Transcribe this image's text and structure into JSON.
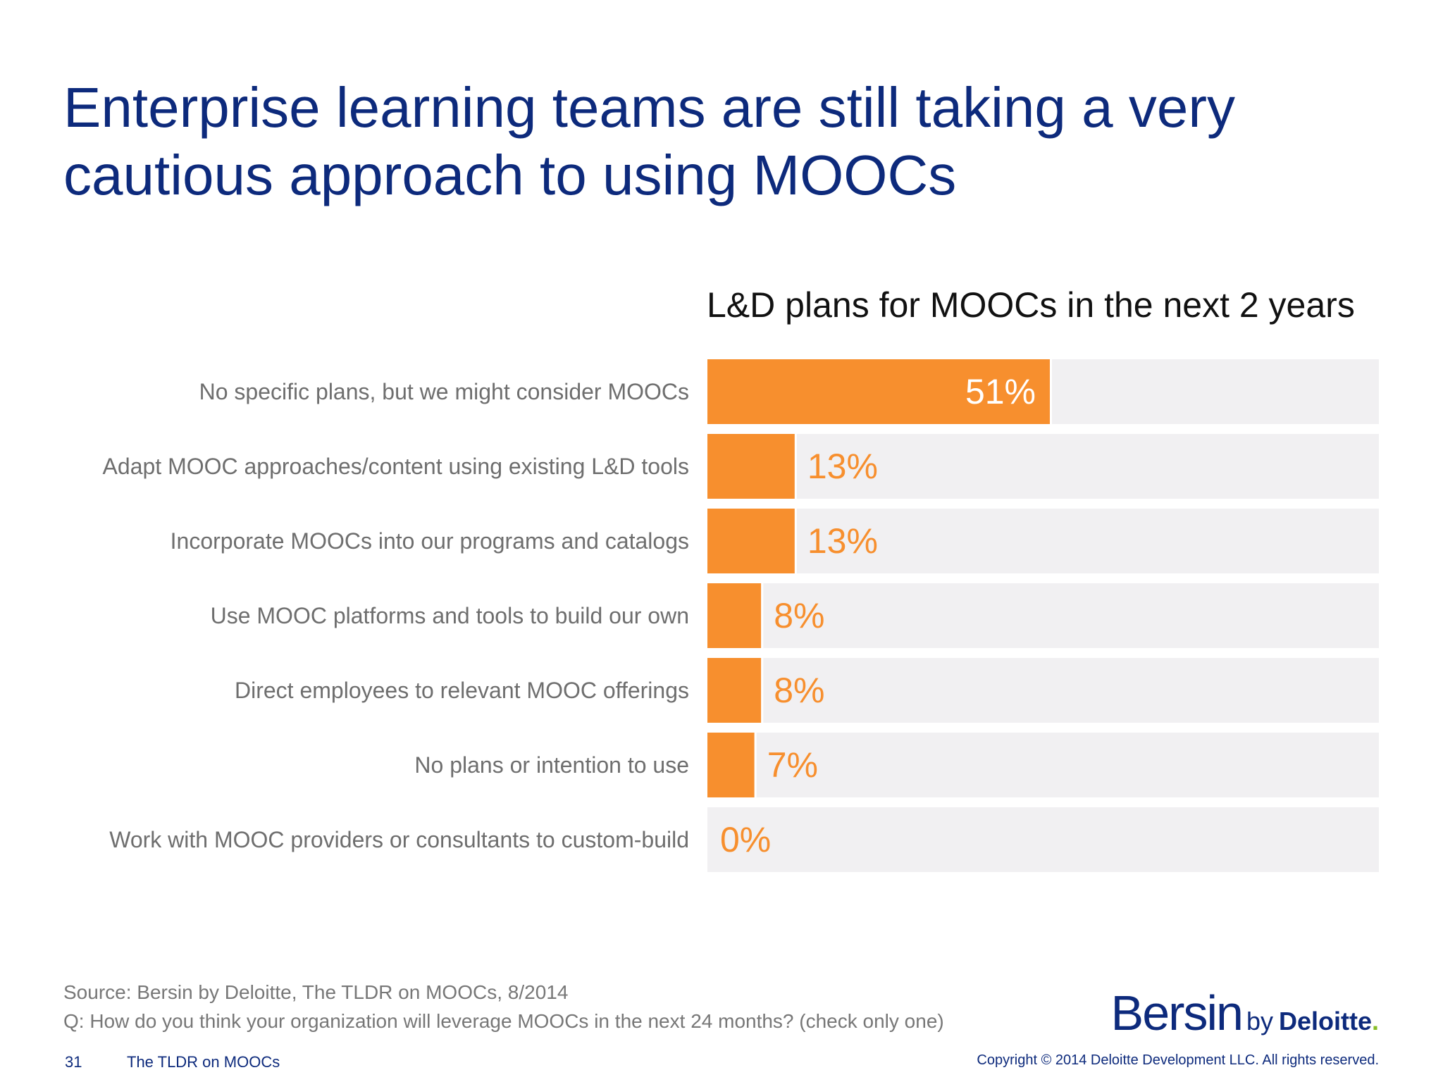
{
  "title": "Enterprise learning teams are still taking a very cautious approach to using MOOCs",
  "chart_data": {
    "type": "bar",
    "orientation": "horizontal",
    "title": "L&D plans for MOOCs in the next 2 years",
    "unit": "%",
    "xlim": [
      0,
      100
    ],
    "grid": false,
    "categories": [
      "No specific plans, but we might consider MOOCs",
      "Adapt MOOC approaches/content using existing L&D tools",
      "Incorporate MOOCs into our programs and catalogs",
      "Use MOOC platforms and tools to build our own",
      "Direct employees to relevant MOOC offerings",
      "No plans or intention to use",
      "Work with MOOC providers or consultants to custom-build"
    ],
    "values": [
      51,
      13,
      13,
      8,
      8,
      7,
      0
    ],
    "value_labels": [
      "51%",
      "13%",
      "13%",
      "8%",
      "8%",
      "7%",
      "0%"
    ]
  },
  "colors": {
    "bar": "#f78f2e",
    "track": "#f1f0f2",
    "label_outside": "#f78f2e",
    "label_inside": "#ffffff",
    "category_text": "#6e6e6e",
    "title": "#0d2a7c"
  },
  "footer": {
    "source": "Source: Bersin by Deloitte, The TLDR on MOOCs, 8/2014",
    "question": "Q: How do you think your organization will leverage MOOCs in the next 24 months? (check only one)",
    "page_number": "31",
    "doc_title": "The TLDR on MOOCs",
    "copyright": "Copyright © 2014 Deloitte Development LLC. All rights reserved."
  },
  "logo": {
    "main": "Bersin",
    "by": "by",
    "brand": "Deloitte",
    "dot": "."
  }
}
